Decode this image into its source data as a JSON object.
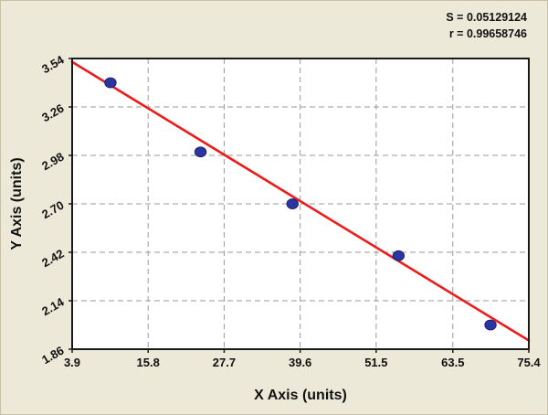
{
  "figure": {
    "background": "#ece9d8"
  },
  "chart_data": {
    "type": "scatter",
    "title": "",
    "xlabel": "X Axis (units)",
    "ylabel": "Y Axis (units)",
    "xlim": [
      3.9,
      75.4
    ],
    "ylim": [
      1.86,
      3.54
    ],
    "x_ticks": [
      "3.9",
      "15.8",
      "27.7",
      "39.6",
      "51.5",
      "63.5",
      "75.4"
    ],
    "y_ticks": [
      "1.86",
      "2.14",
      "2.42",
      "2.70",
      "2.98",
      "3.26",
      "3.54"
    ],
    "grid": "dashed",
    "legend_position": "none",
    "points": [
      {
        "x": 9.9,
        "y": 3.4
      },
      {
        "x": 24.0,
        "y": 3.0
      },
      {
        "x": 38.4,
        "y": 2.7
      },
      {
        "x": 55.0,
        "y": 2.4
      },
      {
        "x": 69.4,
        "y": 2.0
      }
    ],
    "fit_line": {
      "x1": 3.9,
      "y1": 3.52,
      "x2": 75.4,
      "y2": 1.91
    },
    "stats": {
      "s_label": "S = 0.05129124",
      "r_label": "r = 0.99658746"
    },
    "colors": {
      "background": "#ece9d8",
      "plot_background": "#ffffff",
      "frame": "#1a1a1a",
      "grid": "#9a9a9a",
      "point": "#2b35a0",
      "point_edge": "#1b2270",
      "fit_line": "#ee1b1b",
      "text": "#111111"
    }
  }
}
